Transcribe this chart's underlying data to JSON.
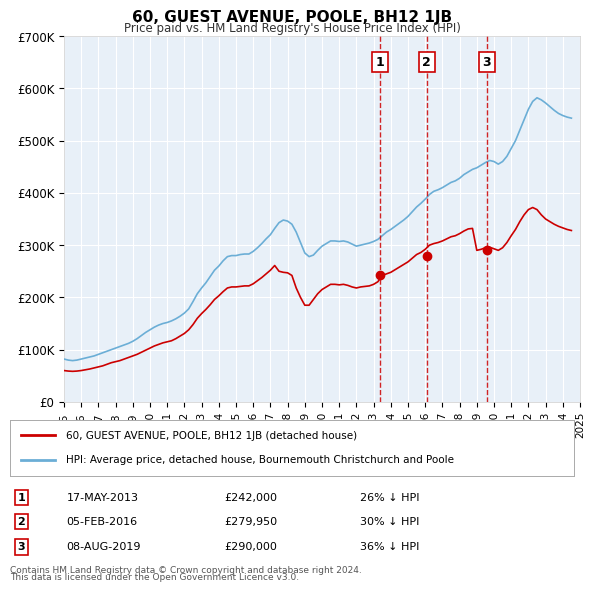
{
  "title": "60, GUEST AVENUE, POOLE, BH12 1JB",
  "subtitle": "Price paid vs. HM Land Registry's House Price Index (HPI)",
  "hpi_label": "HPI: Average price, detached house, Bournemouth Christchurch and Poole",
  "property_label": "60, GUEST AVENUE, POOLE, BH12 1JB (detached house)",
  "footer1": "Contains HM Land Registry data © Crown copyright and database right 2024.",
  "footer2": "This data is licensed under the Open Government Licence v3.0.",
  "ylim": [
    0,
    700000
  ],
  "yticks": [
    0,
    100000,
    200000,
    300000,
    400000,
    500000,
    600000,
    700000
  ],
  "ytick_labels": [
    "£0",
    "£100K",
    "£200K",
    "£300K",
    "£400K",
    "£500K",
    "£600K",
    "£700K"
  ],
  "background_color": "#e8f0f8",
  "plot_bg_color": "#e8f0f8",
  "hpi_color": "#6baed6",
  "property_color": "#cc0000",
  "grid_color": "#ffffff",
  "sale_markers": [
    {
      "year": 2013.38,
      "value": 242000,
      "label": "1",
      "date": "17-MAY-2013",
      "price": "£242,000",
      "pct": "26% ↓ HPI"
    },
    {
      "year": 2016.09,
      "value": 279950,
      "label": "2",
      "date": "05-FEB-2016",
      "price": "£279,950",
      "pct": "30% ↓ HPI"
    },
    {
      "year": 2019.59,
      "value": 290000,
      "label": "3",
      "date": "08-AUG-2019",
      "price": "£290,000",
      "pct": "36% ↓ HPI"
    }
  ],
  "hpi_data": {
    "years": [
      1995.0,
      1995.25,
      1995.5,
      1995.75,
      1996.0,
      1996.25,
      1996.5,
      1996.75,
      1997.0,
      1997.25,
      1997.5,
      1997.75,
      1998.0,
      1998.25,
      1998.5,
      1998.75,
      1999.0,
      1999.25,
      1999.5,
      1999.75,
      2000.0,
      2000.25,
      2000.5,
      2000.75,
      2001.0,
      2001.25,
      2001.5,
      2001.75,
      2002.0,
      2002.25,
      2002.5,
      2002.75,
      2003.0,
      2003.25,
      2003.5,
      2003.75,
      2004.0,
      2004.25,
      2004.5,
      2004.75,
      2005.0,
      2005.25,
      2005.5,
      2005.75,
      2006.0,
      2006.25,
      2006.5,
      2006.75,
      2007.0,
      2007.25,
      2007.5,
      2007.75,
      2008.0,
      2008.25,
      2008.5,
      2008.75,
      2009.0,
      2009.25,
      2009.5,
      2009.75,
      2010.0,
      2010.25,
      2010.5,
      2010.75,
      2011.0,
      2011.25,
      2011.5,
      2011.75,
      2012.0,
      2012.25,
      2012.5,
      2012.75,
      2013.0,
      2013.25,
      2013.5,
      2013.75,
      2014.0,
      2014.25,
      2014.5,
      2014.75,
      2015.0,
      2015.25,
      2015.5,
      2015.75,
      2016.0,
      2016.25,
      2016.5,
      2016.75,
      2017.0,
      2017.25,
      2017.5,
      2017.75,
      2018.0,
      2018.25,
      2018.5,
      2018.75,
      2019.0,
      2019.25,
      2019.5,
      2019.75,
      2020.0,
      2020.25,
      2020.5,
      2020.75,
      2021.0,
      2021.25,
      2021.5,
      2021.75,
      2022.0,
      2022.25,
      2022.5,
      2022.75,
      2023.0,
      2023.25,
      2023.5,
      2023.75,
      2024.0,
      2024.25,
      2024.5
    ],
    "values": [
      82000,
      80000,
      79000,
      80000,
      82000,
      84000,
      86000,
      88000,
      91000,
      94000,
      97000,
      100000,
      103000,
      106000,
      109000,
      112000,
      116000,
      121000,
      127000,
      133000,
      138000,
      143000,
      147000,
      150000,
      152000,
      155000,
      159000,
      164000,
      170000,
      178000,
      192000,
      207000,
      218000,
      228000,
      240000,
      252000,
      260000,
      270000,
      278000,
      280000,
      280000,
      282000,
      283000,
      283000,
      288000,
      295000,
      303000,
      312000,
      320000,
      332000,
      343000,
      348000,
      346000,
      340000,
      325000,
      305000,
      285000,
      278000,
      281000,
      290000,
      298000,
      303000,
      308000,
      308000,
      307000,
      308000,
      306000,
      302000,
      298000,
      300000,
      302000,
      304000,
      307000,
      311000,
      318000,
      325000,
      330000,
      336000,
      342000,
      348000,
      355000,
      364000,
      373000,
      380000,
      388000,
      397000,
      403000,
      406000,
      410000,
      415000,
      420000,
      423000,
      428000,
      435000,
      440000,
      445000,
      448000,
      453000,
      458000,
      462000,
      460000,
      455000,
      460000,
      470000,
      485000,
      500000,
      520000,
      540000,
      560000,
      575000,
      582000,
      578000,
      572000,
      565000,
      558000,
      552000,
      548000,
      545000,
      543000
    ]
  },
  "property_data": {
    "years": [
      1995.0,
      1995.25,
      1995.5,
      1995.75,
      1996.0,
      1996.25,
      1996.5,
      1996.75,
      1997.0,
      1997.25,
      1997.5,
      1997.75,
      1998.0,
      1998.25,
      1998.5,
      1998.75,
      1999.0,
      1999.25,
      1999.5,
      1999.75,
      2000.0,
      2000.25,
      2000.5,
      2000.75,
      2001.0,
      2001.25,
      2001.5,
      2001.75,
      2002.0,
      2002.25,
      2002.5,
      2002.75,
      2003.0,
      2003.25,
      2003.5,
      2003.75,
      2004.0,
      2004.25,
      2004.5,
      2004.75,
      2005.0,
      2005.25,
      2005.5,
      2005.75,
      2006.0,
      2006.25,
      2006.5,
      2006.75,
      2007.0,
      2007.25,
      2007.5,
      2007.75,
      2008.0,
      2008.25,
      2008.5,
      2008.75,
      2009.0,
      2009.25,
      2009.5,
      2009.75,
      2010.0,
      2010.25,
      2010.5,
      2010.75,
      2011.0,
      2011.25,
      2011.5,
      2011.75,
      2012.0,
      2012.25,
      2012.5,
      2012.75,
      2013.0,
      2013.25,
      2013.5,
      2013.75,
      2014.0,
      2014.25,
      2014.5,
      2014.75,
      2015.0,
      2015.25,
      2015.5,
      2015.75,
      2016.0,
      2016.25,
      2016.5,
      2016.75,
      2017.0,
      2017.25,
      2017.5,
      2017.75,
      2018.0,
      2018.25,
      2018.5,
      2018.75,
      2019.0,
      2019.25,
      2019.5,
      2019.75,
      2020.0,
      2020.25,
      2020.5,
      2020.75,
      2021.0,
      2021.25,
      2021.5,
      2021.75,
      2022.0,
      2022.25,
      2022.5,
      2022.75,
      2023.0,
      2023.25,
      2023.5,
      2023.75,
      2024.0,
      2024.25,
      2024.5
    ],
    "values": [
      60000,
      59000,
      58500,
      59000,
      60000,
      61500,
      63000,
      65000,
      67000,
      69000,
      72000,
      75000,
      77000,
      79000,
      82000,
      85000,
      88000,
      91000,
      95000,
      99000,
      103000,
      107000,
      110000,
      113000,
      115000,
      117000,
      121000,
      126000,
      131000,
      138000,
      148000,
      160000,
      169000,
      177000,
      186000,
      196000,
      203000,
      211000,
      218000,
      220000,
      220000,
      221000,
      222000,
      222000,
      226000,
      232000,
      238000,
      245000,
      252000,
      261000,
      250000,
      248000,
      247000,
      242000,
      218000,
      200000,
      185000,
      185000,
      196000,
      207000,
      215000,
      220000,
      225000,
      225000,
      224000,
      225000,
      223000,
      220000,
      218000,
      220000,
      221000,
      222000,
      225000,
      230000,
      242000,
      245000,
      248000,
      253000,
      258000,
      263000,
      268000,
      275000,
      282000,
      286000,
      292000,
      300000,
      303000,
      305000,
      308000,
      312000,
      316000,
      318000,
      322000,
      327000,
      331000,
      332000,
      290000,
      292000,
      295000,
      296000,
      293000,
      290000,
      295000,
      305000,
      318000,
      330000,
      345000,
      358000,
      368000,
      372000,
      368000,
      358000,
      350000,
      345000,
      340000,
      336000,
      333000,
      330000,
      328000
    ]
  }
}
